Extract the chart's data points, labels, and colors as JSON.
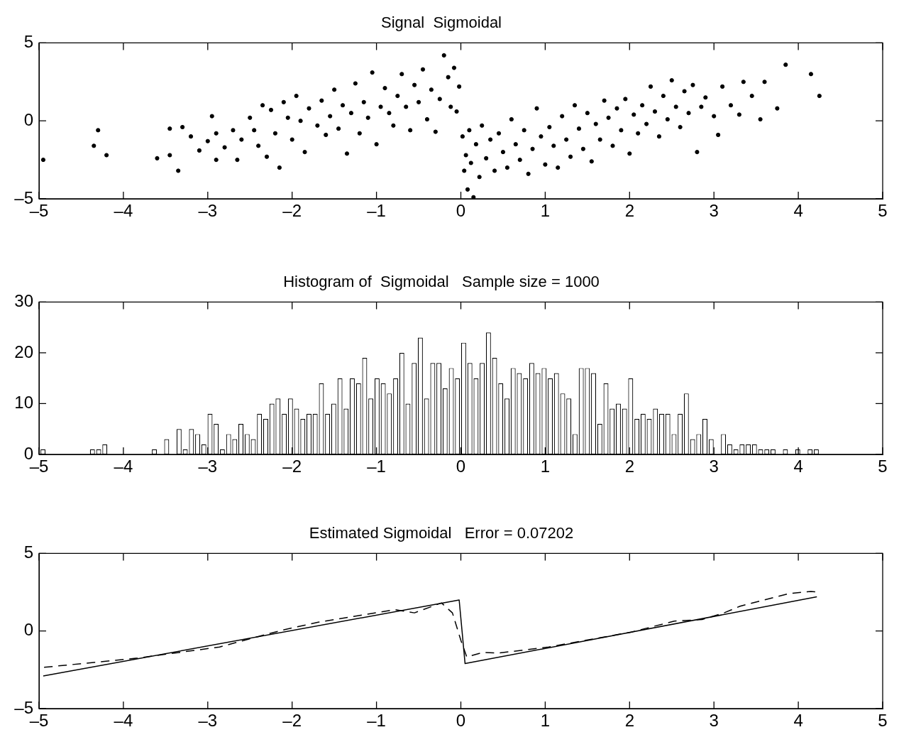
{
  "chart_data": [
    {
      "type": "scatter",
      "title": "Signal  Sigmoidal",
      "color": "#000000",
      "marker": "circle",
      "grid": false,
      "legend": false,
      "x": [
        -4.95,
        -4.35,
        -4.3,
        -4.2,
        -3.6,
        -3.45,
        -3.45,
        -3.35,
        -3.3,
        -3.2,
        -3.1,
        -3.0,
        -2.95,
        -2.9,
        -2.9,
        -2.8,
        -2.7,
        -2.65,
        -2.6,
        -2.5,
        -2.45,
        -2.4,
        -2.35,
        -2.3,
        -2.25,
        -2.2,
        -2.15,
        -2.1,
        -2.05,
        -2.0,
        -1.95,
        -1.9,
        -1.85,
        -1.8,
        -1.7,
        -1.65,
        -1.6,
        -1.55,
        -1.5,
        -1.45,
        -1.4,
        -1.35,
        -1.3,
        -1.25,
        -1.2,
        -1.15,
        -1.1,
        -1.05,
        -1.0,
        -0.95,
        -0.9,
        -0.85,
        -0.8,
        -0.75,
        -0.7,
        -0.65,
        -0.6,
        -0.55,
        -0.5,
        -0.45,
        -0.4,
        -0.35,
        -0.3,
        -0.25,
        -0.2,
        -0.15,
        -0.12,
        -0.08,
        -0.05,
        -0.02,
        0.02,
        0.04,
        0.06,
        0.08,
        0.1,
        0.12,
        0.15,
        0.18,
        0.22,
        0.25,
        0.3,
        0.35,
        0.4,
        0.45,
        0.5,
        0.55,
        0.6,
        0.65,
        0.7,
        0.75,
        0.8,
        0.85,
        0.9,
        0.95,
        1.0,
        1.05,
        1.1,
        1.15,
        1.2,
        1.25,
        1.3,
        1.35,
        1.4,
        1.45,
        1.5,
        1.55,
        1.6,
        1.65,
        1.7,
        1.75,
        1.8,
        1.85,
        1.9,
        1.95,
        2.0,
        2.05,
        2.1,
        2.15,
        2.2,
        2.25,
        2.3,
        2.35,
        2.4,
        2.45,
        2.5,
        2.55,
        2.6,
        2.65,
        2.7,
        2.75,
        2.8,
        2.85,
        2.9,
        3.0,
        3.05,
        3.1,
        3.2,
        3.3,
        3.35,
        3.45,
        3.55,
        3.6,
        3.75,
        3.85,
        4.15,
        4.25
      ],
      "values": [
        -2.5,
        -1.6,
        -0.6,
        -2.2,
        -2.4,
        -2.2,
        -0.5,
        -3.2,
        -0.4,
        -1.0,
        -1.9,
        -1.3,
        0.3,
        -2.5,
        -0.8,
        -1.7,
        -0.6,
        -2.5,
        -1.2,
        0.2,
        -0.6,
        -1.6,
        1.0,
        -2.3,
        0.7,
        -0.8,
        -3.0,
        1.2,
        0.2,
        -1.2,
        1.6,
        0.0,
        -2.0,
        0.8,
        -0.3,
        1.3,
        -0.9,
        0.3,
        2.0,
        -0.5,
        1.0,
        -2.1,
        0.5,
        2.4,
        -0.8,
        1.2,
        0.2,
        3.1,
        -1.5,
        0.9,
        2.1,
        0.5,
        -0.3,
        1.6,
        3.0,
        0.9,
        -0.6,
        2.3,
        1.2,
        3.3,
        0.1,
        2.0,
        -0.7,
        1.4,
        4.2,
        2.8,
        0.9,
        3.4,
        0.6,
        2.2,
        -1.0,
        -3.2,
        -2.2,
        -4.4,
        -0.6,
        -2.7,
        -4.9,
        -1.5,
        -3.6,
        -0.3,
        -2.4,
        -1.2,
        -3.2,
        -0.8,
        -2.0,
        -3.0,
        0.1,
        -1.5,
        -2.5,
        -0.6,
        -3.4,
        -1.8,
        0.8,
        -1.0,
        -2.8,
        -0.4,
        -1.6,
        -3.0,
        0.3,
        -1.2,
        -2.3,
        1.0,
        -0.5,
        -1.8,
        0.5,
        -2.6,
        -0.2,
        -1.2,
        1.3,
        0.2,
        -1.6,
        0.8,
        -0.6,
        1.4,
        -2.1,
        0.4,
        -0.8,
        1.0,
        -0.2,
        2.2,
        0.6,
        -1.0,
        1.6,
        0.1,
        2.6,
        0.9,
        -0.4,
        1.9,
        0.5,
        2.3,
        -2.0,
        0.9,
        1.5,
        0.3,
        -0.9,
        2.2,
        1.0,
        0.4,
        2.5,
        1.6,
        0.1,
        2.5,
        0.8,
        3.6,
        3.0,
        1.6
      ],
      "xlim": [
        -5,
        5
      ],
      "xticks": [
        {
          "value": -5,
          "label": "–5"
        },
        {
          "value": -4,
          "label": "–4"
        },
        {
          "value": -3,
          "label": "–3"
        },
        {
          "value": -2,
          "label": "–2"
        },
        {
          "value": -1,
          "label": "–1"
        },
        0,
        1,
        2,
        3,
        4,
        5
      ],
      "ylim": [
        -5,
        5
      ],
      "yticks": [
        {
          "value": -5,
          "label": "–5"
        },
        0,
        5
      ]
    },
    {
      "type": "bar",
      "title": "Histogram of  Sigmoidal   Sample size = 1000",
      "color": "#ffffff",
      "grid": false,
      "legend": false,
      "x": [
        -4.953,
        -4.88,
        -4.807,
        -4.733,
        -4.66,
        -4.587,
        -4.513,
        -4.44,
        -4.367,
        -4.293,
        -4.22,
        -4.147,
        -4.073,
        -4.0,
        -3.927,
        -3.853,
        -3.78,
        -3.707,
        -3.633,
        -3.56,
        -3.487,
        -3.413,
        -3.34,
        -3.267,
        -3.193,
        -3.12,
        -3.047,
        -2.973,
        -2.9,
        -2.827,
        -2.753,
        -2.68,
        -2.607,
        -2.533,
        -2.46,
        -2.387,
        -2.313,
        -2.24,
        -2.167,
        -2.093,
        -2.02,
        -1.947,
        -1.873,
        -1.8,
        -1.727,
        -1.653,
        -1.58,
        -1.507,
        -1.433,
        -1.36,
        -1.287,
        -1.213,
        -1.14,
        -1.067,
        -0.993,
        -0.92,
        -0.847,
        -0.773,
        -0.7,
        -0.627,
        -0.553,
        -0.48,
        -0.407,
        -0.333,
        -0.26,
        -0.187,
        -0.113,
        -0.04,
        0.033,
        0.107,
        0.18,
        0.253,
        0.327,
        0.4,
        0.473,
        0.547,
        0.62,
        0.693,
        0.767,
        0.84,
        0.913,
        0.987,
        1.06,
        1.133,
        1.207,
        1.28,
        1.353,
        1.427,
        1.5,
        1.573,
        1.647,
        1.72,
        1.793,
        1.867,
        1.94,
        2.013,
        2.087,
        2.16,
        2.233,
        2.307,
        2.38,
        2.453,
        2.527,
        2.6,
        2.673,
        2.747,
        2.82,
        2.893,
        2.967,
        3.04,
        3.113,
        3.187,
        3.26,
        3.333,
        3.407,
        3.48,
        3.553,
        3.627,
        3.7,
        3.773,
        3.847,
        3.92,
        3.993,
        4.067,
        4.14,
        4.213
      ],
      "values": [
        1,
        0,
        0,
        0,
        0,
        0,
        0,
        0,
        1,
        1,
        2,
        0,
        0,
        0,
        0,
        0,
        0,
        0,
        1,
        0,
        3,
        0,
        5,
        1,
        5,
        4,
        2,
        8,
        6,
        1,
        4,
        3,
        6,
        4,
        3,
        8,
        7,
        10,
        11,
        8,
        11,
        9,
        7,
        8,
        8,
        14,
        8,
        10,
        15,
        9,
        15,
        14,
        19,
        11,
        15,
        14,
        12,
        15,
        20,
        10,
        18,
        23,
        11,
        18,
        18,
        13,
        17,
        15,
        22,
        18,
        15,
        18,
        24,
        19,
        14,
        11,
        17,
        16,
        15,
        18,
        16,
        17,
        15,
        16,
        12,
        11,
        4,
        17,
        17,
        16,
        6,
        14,
        9,
        10,
        9,
        15,
        7,
        8,
        7,
        9,
        8,
        8,
        4,
        8,
        12,
        3,
        4,
        7,
        3,
        0,
        4,
        2,
        1,
        2,
        2,
        2,
        1,
        1,
        1,
        0,
        1,
        0,
        1,
        0,
        1,
        1
      ],
      "xlim": [
        -5,
        5
      ],
      "xticks": [
        {
          "value": -5,
          "label": "–5"
        },
        {
          "value": -4,
          "label": "–4"
        },
        {
          "value": -3,
          "label": "–3"
        },
        {
          "value": -2,
          "label": "–2"
        },
        {
          "value": -1,
          "label": "–1"
        },
        0,
        1,
        2,
        3,
        4,
        5
      ],
      "ylim": [
        0,
        30
      ],
      "yticks": [
        0,
        10,
        20,
        30
      ]
    },
    {
      "type": "line",
      "title": "Estimated Sigmoidal   Error = 0.07202",
      "grid": false,
      "legend": false,
      "series": [
        {
          "color": "#000000",
          "line_style": "solid",
          "x": [
            -4.95,
            -0.02,
            0.05,
            4.22
          ],
          "values": [
            -2.9,
            2.0,
            -2.1,
            2.2
          ]
        },
        {
          "color": "#000000",
          "line_style": "dashed",
          "x": [
            -4.94,
            -3.83,
            -2.86,
            -2.33,
            -2.08,
            -1.69,
            -0.78,
            -0.55,
            -0.23,
            -0.1,
            0.0,
            0.07,
            0.26,
            0.45,
            1.04,
            2.02,
            2.53,
            2.86,
            3.12,
            3.31,
            3.89,
            4.15,
            4.2
          ],
          "values": [
            -2.34,
            -1.74,
            -1.03,
            -0.25,
            0.1,
            0.57,
            1.38,
            1.17,
            1.81,
            1.17,
            -0.6,
            -1.67,
            -1.38,
            -1.42,
            -1.03,
            -0.07,
            0.64,
            0.74,
            1.17,
            1.6,
            2.41,
            2.55,
            2.52
          ]
        }
      ],
      "xlim": [
        -5,
        5
      ],
      "xticks": [
        {
          "value": -5,
          "label": "–5"
        },
        {
          "value": -4,
          "label": "–4"
        },
        {
          "value": -3,
          "label": "–3"
        },
        {
          "value": -2,
          "label": "–2"
        },
        {
          "value": -1,
          "label": "–1"
        },
        0,
        1,
        2,
        3,
        4,
        5
      ],
      "ylim": [
        -5,
        5
      ],
      "yticks": [
        {
          "value": -5,
          "label": "–5"
        },
        0,
        5
      ]
    }
  ]
}
